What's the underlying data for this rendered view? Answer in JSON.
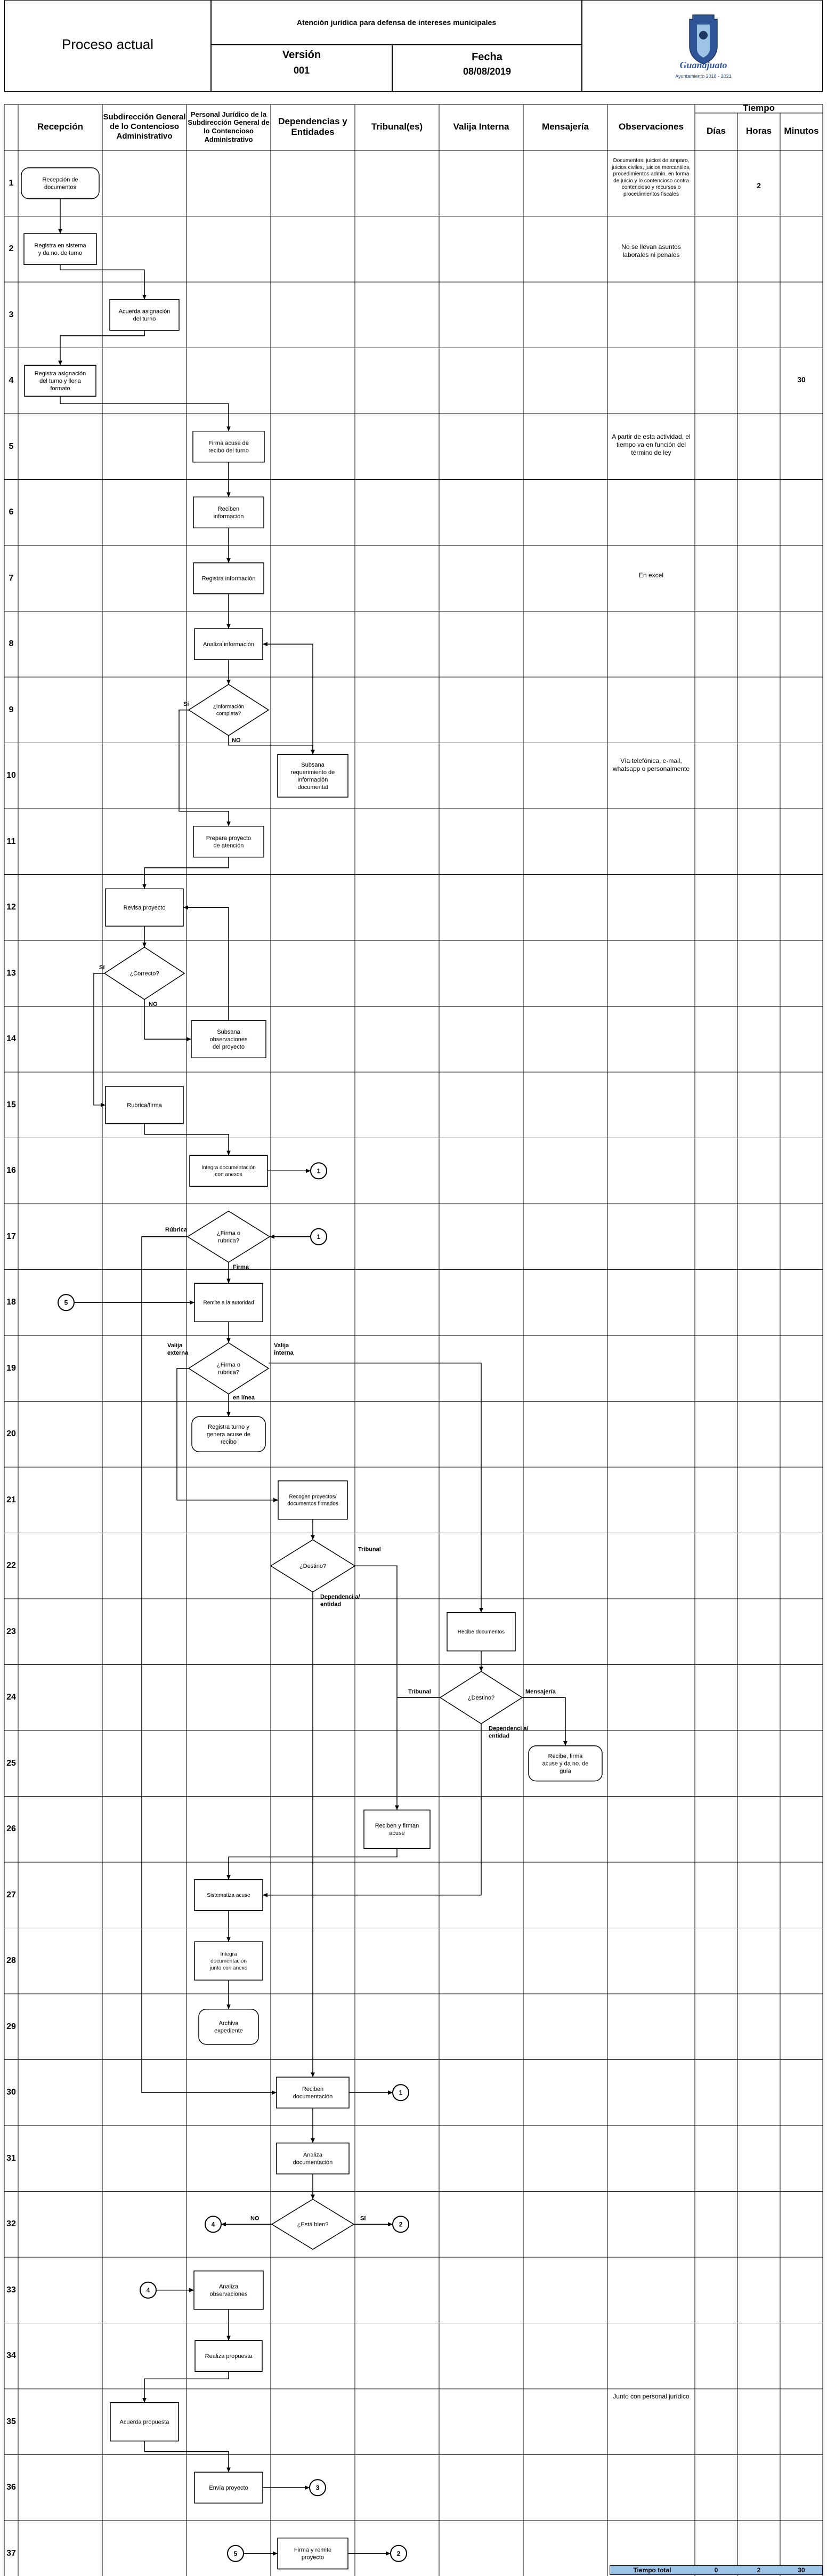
{
  "header": {
    "doc_title": "Proceso actual",
    "process_name": "Atención jurídica para defensa de intereses municipales",
    "version_label": "Versión",
    "version_value": "001",
    "date_label": "Fecha",
    "date_value": "08/08/2019",
    "logo_text": "Guanajuato",
    "logo_subtext": "Ayuntamiento 2018 - 2021"
  },
  "columns": {
    "recepcion": "Recepción",
    "subdireccion": "Subdirección General de lo Contencioso Administrativo",
    "personal": "Personal Jurídico de la Subdirección General de lo Contencioso Administrativo",
    "dependencias": "Dependencias y Entidades",
    "tribunales": "Tribunal(es)",
    "valija": "Valija Interna",
    "mensajeria": "Mensajería",
    "observaciones": "Observaciones",
    "tiempo": "Tiempo",
    "dias": "Días",
    "horas": "Horas",
    "minutos": "Minutos"
  },
  "rows": [
    "1",
    "2",
    "3",
    "4",
    "5",
    "6",
    "7",
    "8",
    "9",
    "10",
    "11",
    "12",
    "13",
    "14",
    "15",
    "16",
    "17",
    "18",
    "19",
    "20",
    "21",
    "22",
    "23",
    "24",
    "25",
    "26",
    "27",
    "28",
    "29",
    "30",
    "31",
    "32",
    "33",
    "34",
    "35",
    "36",
    "37"
  ],
  "observations": {
    "r1": "Documentos: juicios de amparo, juicios civiles, juicios mercantiles, procedimientos admin. en forma de juicio y lo contencioso contra contencioso y recursos o procedimientos fiscales",
    "r2": "No se llevan asuntos laborales ni penales",
    "r5": "A partir de esta actividad, el tiempo va en función del término de ley",
    "r7": "En excel",
    "r10": "Vía telefónica, e-mail, whatsapp o personalmente",
    "r35": "Junto con personal jurídico"
  },
  "time_values": {
    "r1_horas": "2",
    "r4_minutos": "30"
  },
  "total": {
    "label": "Tiempo total",
    "dias": "0",
    "horas": "2",
    "minutos": "30"
  },
  "nodes": {
    "n1": "Recepción de documentos",
    "n2": "Registra en sistema y da no. de turno",
    "n3": "Acuerda asignación del turno",
    "n4": "Registra asignación del turno y llena formato",
    "n5": "Firma acuse de recibo del turno",
    "n6": "Reciben información",
    "n7": "Registra información",
    "n8": "Analiza información",
    "n9": "¿Información completa?",
    "n10": "Subsana requerimiento de información documental",
    "n11": "Prepara proyecto de atención",
    "n12": "Revisa proyecto",
    "n13": "¿Correcto?",
    "n14": "Subsana observaciones del proyecto",
    "n15": "Rubrica/firma",
    "n16": "Integra documentación con anexos",
    "n17": "¿Firma o rubrica?",
    "n18": "Remite a la autoridad",
    "n19": "¿Firma o rubrica?",
    "n20": "Registra turno y genera acuse de recibo",
    "n21": "Recogen proyectos/ documentos firmados",
    "n22": "¿Destino?",
    "n23": "Recibe documentos",
    "n24": "¿Destino?",
    "n25": "Recibe, firma acuse y da no. de guía",
    "n26": "Reciben y firman acuse",
    "n27": "Sistematiza acuse",
    "n28": "Integra documentación junto con anexo",
    "n29": "Archiva expediente",
    "n30": "Reciben documentación",
    "n31": "Analiza documentación",
    "n32": "¿Está bien?",
    "n33": "Analiza observaciones",
    "n34": "Realiza propuesta",
    "n35": "Acuerda propuesta",
    "n36": "Envía proyecto",
    "n37": "Firma y remite proyecto"
  },
  "connectors": {
    "c16": "1",
    "c17": "1",
    "c18": "5",
    "c30": "1",
    "c32a": "4",
    "c32b": "2",
    "c33": "4",
    "c36": "3",
    "c37a": "5",
    "c37b": "2"
  },
  "edge_labels": {
    "si": "Sí",
    "no": "NO",
    "no13": "NO",
    "si13": "Sí",
    "rubrica": "Rúbrica",
    "firma": "Firma",
    "valija_ext": "Valija externa",
    "valija_int": "Valija interna",
    "en_linea": "en línea",
    "tribunal22": "Tribunal",
    "dep22": "Dependenci a/ entidad",
    "tribunal24": "Tribunal",
    "mensajeria24": "Mensajería",
    "dep24": "Dependenci a/ entidad",
    "no32": "NO",
    "si32": "SI"
  }
}
